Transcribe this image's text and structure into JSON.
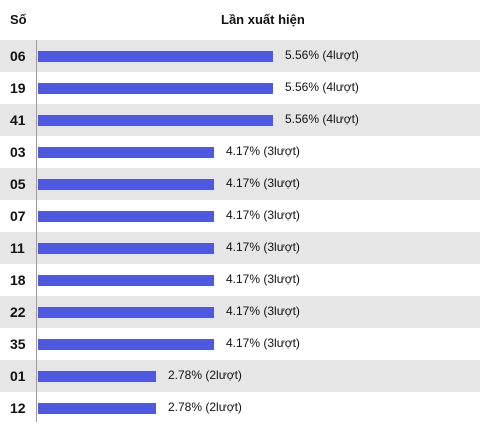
{
  "header": {
    "number_label": "Số",
    "value_label": "Lần xuất hiện"
  },
  "colors": {
    "bar": "#4f58e0",
    "row_shaded": "#e6e6e6",
    "row_plain": "#ffffff"
  },
  "chart_data": {
    "type": "bar",
    "orientation": "horizontal",
    "title": "",
    "xlabel": "Lần xuất hiện",
    "ylabel": "Số",
    "xlim": [
      0,
      5.56
    ],
    "categories": [
      "06",
      "19",
      "41",
      "03",
      "05",
      "07",
      "11",
      "18",
      "22",
      "35",
      "01",
      "12"
    ],
    "values": [
      5.56,
      5.56,
      5.56,
      4.17,
      4.17,
      4.17,
      4.17,
      4.17,
      4.17,
      4.17,
      2.78,
      2.78
    ],
    "labels": [
      "5.56% (4lượt)",
      "5.56% (4lượt)",
      "5.56% (4lượt)",
      "4.17% (3lượt)",
      "4.17% (3lượt)",
      "4.17% (3lượt)",
      "4.17% (3lượt)",
      "4.17% (3lượt)",
      "4.17% (3lượt)",
      "4.17% (3lượt)",
      "2.78% (2lượt)",
      "2.78% (2lượt)"
    ]
  }
}
